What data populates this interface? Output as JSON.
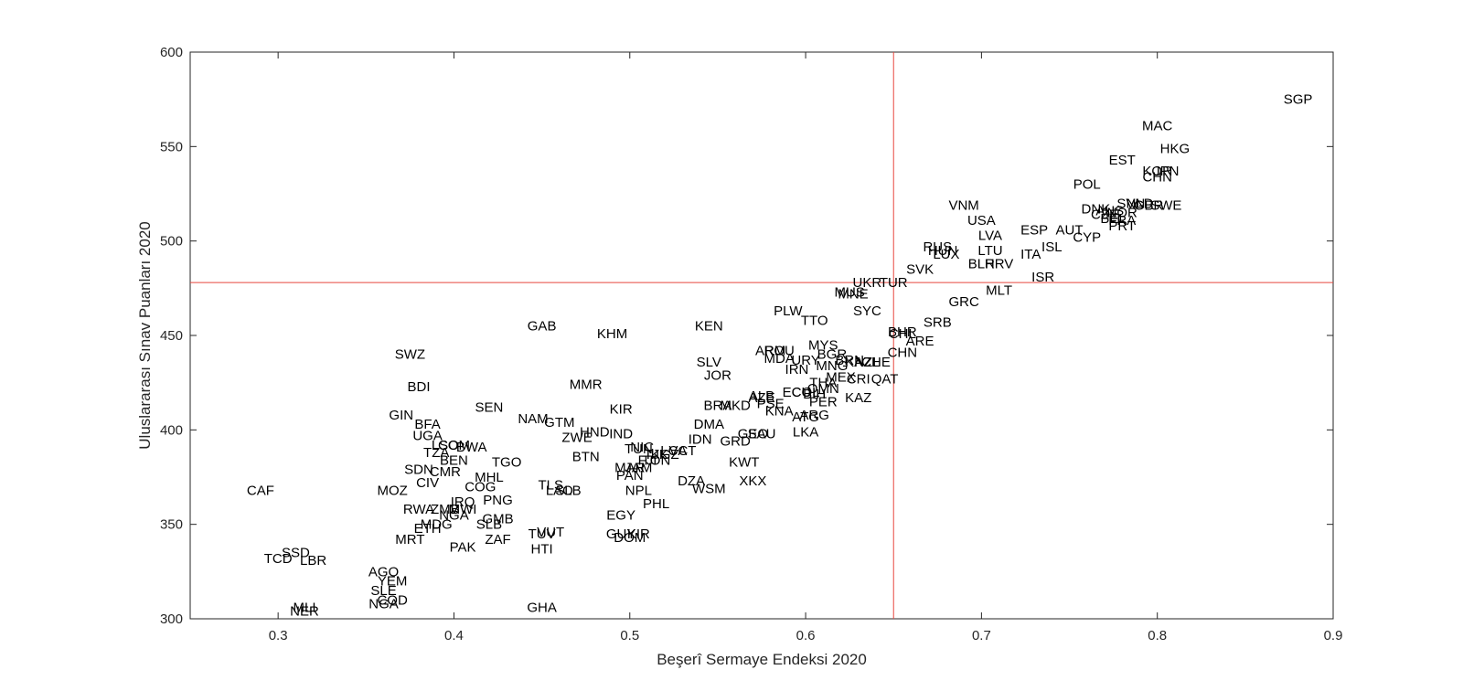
{
  "chart_data": {
    "type": "scatter",
    "title": "",
    "xlabel": "Beşerî Sermaye Endeksi 2020",
    "ylabel": "Uluslararası Sınav Puanları 2020",
    "xlim": [
      0.25,
      0.9
    ],
    "ylim": [
      300,
      600
    ],
    "xticks": [
      "0.3",
      "0.4",
      "0.5",
      "0.6",
      "0.7",
      "0.8",
      "0.9"
    ],
    "yticks": [
      "300",
      "350",
      "400",
      "450",
      "500",
      "550",
      "600"
    ],
    "grid": false,
    "reference_lines": {
      "x": 0.65,
      "y": 478,
      "color": "#e8473f"
    },
    "colors": {
      "axis": "#262626",
      "text": "#000000",
      "reference": "#e8473f"
    },
    "points": [
      {
        "label": "SGP",
        "x": 0.88,
        "y": 575
      },
      {
        "label": "MAC",
        "x": 0.8,
        "y": 561
      },
      {
        "label": "HKG",
        "x": 0.81,
        "y": 549
      },
      {
        "label": "EST",
        "x": 0.78,
        "y": 543
      },
      {
        "label": "KOR",
        "x": 0.8,
        "y": 537
      },
      {
        "label": "JPN",
        "x": 0.805,
        "y": 537
      },
      {
        "label": "CHN",
        "x": 0.8,
        "y": 534
      },
      {
        "label": "POL",
        "x": 0.76,
        "y": 530
      },
      {
        "label": "SVN",
        "x": 0.785,
        "y": 520
      },
      {
        "label": "NLD",
        "x": 0.79,
        "y": 520
      },
      {
        "label": "GBR",
        "x": 0.795,
        "y": 519
      },
      {
        "label": "SWE",
        "x": 0.805,
        "y": 519
      },
      {
        "label": "DNK",
        "x": 0.765,
        "y": 517
      },
      {
        "label": "CZE",
        "x": 0.77,
        "y": 514
      },
      {
        "label": "BEL",
        "x": 0.775,
        "y": 512
      },
      {
        "label": "AUS",
        "x": 0.773,
        "y": 516
      },
      {
        "label": "NOR",
        "x": 0.78,
        "y": 515
      },
      {
        "label": "FRA",
        "x": 0.78,
        "y": 511
      },
      {
        "label": "PRT",
        "x": 0.78,
        "y": 508
      },
      {
        "label": "VNM",
        "x": 0.69,
        "y": 519
      },
      {
        "label": "USA",
        "x": 0.7,
        "y": 511
      },
      {
        "label": "LVA",
        "x": 0.705,
        "y": 503
      },
      {
        "label": "ESP",
        "x": 0.73,
        "y": 506
      },
      {
        "label": "AUT",
        "x": 0.75,
        "y": 506
      },
      {
        "label": "CYP",
        "x": 0.76,
        "y": 502
      },
      {
        "label": "ISL",
        "x": 0.74,
        "y": 497
      },
      {
        "label": "LTU",
        "x": 0.705,
        "y": 495
      },
      {
        "label": "ITA",
        "x": 0.728,
        "y": 493
      },
      {
        "label": "RUS",
        "x": 0.675,
        "y": 497
      },
      {
        "label": "HUN",
        "x": 0.678,
        "y": 495
      },
      {
        "label": "LUX",
        "x": 0.68,
        "y": 493
      },
      {
        "label": "BLR",
        "x": 0.7,
        "y": 488
      },
      {
        "label": "HRV",
        "x": 0.71,
        "y": 488
      },
      {
        "label": "SVK",
        "x": 0.665,
        "y": 485
      },
      {
        "label": "ISR",
        "x": 0.735,
        "y": 481
      },
      {
        "label": "UKR",
        "x": 0.635,
        "y": 478
      },
      {
        "label": "TUR",
        "x": 0.65,
        "y": 478
      },
      {
        "label": "MUS",
        "x": 0.625,
        "y": 473
      },
      {
        "label": "MNE",
        "x": 0.627,
        "y": 472
      },
      {
        "label": "MLT",
        "x": 0.71,
        "y": 474
      },
      {
        "label": "GRC",
        "x": 0.69,
        "y": 468
      },
      {
        "label": "PLW",
        "x": 0.59,
        "y": 463
      },
      {
        "label": "SYC",
        "x": 0.635,
        "y": 463
      },
      {
        "label": "TTO",
        "x": 0.605,
        "y": 458
      },
      {
        "label": "SRB",
        "x": 0.675,
        "y": 457
      },
      {
        "label": "BHR",
        "x": 0.655,
        "y": 452
      },
      {
        "label": "CHL",
        "x": 0.655,
        "y": 451
      },
      {
        "label": "ARE",
        "x": 0.665,
        "y": 447
      },
      {
        "label": "GAB",
        "x": 0.45,
        "y": 455
      },
      {
        "label": "KHM",
        "x": 0.49,
        "y": 451
      },
      {
        "label": "KEN",
        "x": 0.545,
        "y": 455
      },
      {
        "label": "MYS",
        "x": 0.61,
        "y": 445
      },
      {
        "label": "ARM",
        "x": 0.58,
        "y": 442
      },
      {
        "label": "ROU",
        "x": 0.585,
        "y": 442
      },
      {
        "label": "BGR",
        "x": 0.615,
        "y": 440
      },
      {
        "label": "MDA",
        "x": 0.585,
        "y": 438
      },
      {
        "label": "URY",
        "x": 0.6,
        "y": 437
      },
      {
        "label": "BRN",
        "x": 0.625,
        "y": 437
      },
      {
        "label": "KAZ",
        "x": 0.63,
        "y": 436
      },
      {
        "label": "NZL",
        "x": 0.635,
        "y": 436
      },
      {
        "label": "CHE",
        "x": 0.64,
        "y": 436
      },
      {
        "label": "CHN2",
        "x": 0.655,
        "y": 441
      },
      {
        "label": "SLV",
        "x": 0.545,
        "y": 436
      },
      {
        "label": "MNG",
        "x": 0.615,
        "y": 434
      },
      {
        "label": "IRN",
        "x": 0.595,
        "y": 432
      },
      {
        "label": "JOR",
        "x": 0.55,
        "y": 429
      },
      {
        "label": "MEX",
        "x": 0.62,
        "y": 428
      },
      {
        "label": "CRI",
        "x": 0.63,
        "y": 427
      },
      {
        "label": "QAT",
        "x": 0.645,
        "y": 427
      },
      {
        "label": "THA",
        "x": 0.61,
        "y": 425
      },
      {
        "label": "OMN",
        "x": 0.61,
        "y": 422
      },
      {
        "label": "MMR",
        "x": 0.475,
        "y": 424
      },
      {
        "label": "BDI",
        "x": 0.38,
        "y": 423
      },
      {
        "label": "SWZ",
        "x": 0.375,
        "y": 440
      },
      {
        "label": "ECU",
        "x": 0.595,
        "y": 420
      },
      {
        "label": "COL",
        "x": 0.6,
        "y": 420
      },
      {
        "label": "BIH",
        "x": 0.605,
        "y": 419
      },
      {
        "label": "ALB",
        "x": 0.575,
        "y": 418
      },
      {
        "label": "AZE",
        "x": 0.575,
        "y": 417
      },
      {
        "label": "PSE",
        "x": 0.58,
        "y": 414
      },
      {
        "label": "PER",
        "x": 0.61,
        "y": 415
      },
      {
        "label": "KAZ2",
        "x": 0.63,
        "y": 417
      },
      {
        "label": "BRA",
        "x": 0.55,
        "y": 413
      },
      {
        "label": "MKD",
        "x": 0.56,
        "y": 413
      },
      {
        "label": "KNA",
        "x": 0.585,
        "y": 410
      },
      {
        "label": "ATG",
        "x": 0.6,
        "y": 407
      },
      {
        "label": "ARG",
        "x": 0.605,
        "y": 408
      },
      {
        "label": "KIR",
        "x": 0.495,
        "y": 411
      },
      {
        "label": "SEN",
        "x": 0.42,
        "y": 412
      },
      {
        "label": "GIN",
        "x": 0.37,
        "y": 408
      },
      {
        "label": "NAM",
        "x": 0.445,
        "y": 406
      },
      {
        "label": "GTM",
        "x": 0.46,
        "y": 404
      },
      {
        "label": "DMA",
        "x": 0.545,
        "y": 403
      },
      {
        "label": "BFA",
        "x": 0.385,
        "y": 403
      },
      {
        "label": "LKA",
        "x": 0.6,
        "y": 399
      },
      {
        "label": "HND",
        "x": 0.48,
        "y": 399
      },
      {
        "label": "IND",
        "x": 0.495,
        "y": 398
      },
      {
        "label": "GEO",
        "x": 0.57,
        "y": 398
      },
      {
        "label": "SAU",
        "x": 0.575,
        "y": 398
      },
      {
        "label": "UGA",
        "x": 0.385,
        "y": 397
      },
      {
        "label": "ZWE",
        "x": 0.47,
        "y": 396
      },
      {
        "label": "IDN",
        "x": 0.54,
        "y": 395
      },
      {
        "label": "GRD",
        "x": 0.56,
        "y": 394
      },
      {
        "label": "LSO",
        "x": 0.395,
        "y": 392
      },
      {
        "label": "COM",
        "x": 0.4,
        "y": 392
      },
      {
        "label": "BWA",
        "x": 0.41,
        "y": 391
      },
      {
        "label": "TUN",
        "x": 0.505,
        "y": 390
      },
      {
        "label": "NIC",
        "x": 0.507,
        "y": 391
      },
      {
        "label": "LCA",
        "x": 0.525,
        "y": 389
      },
      {
        "label": "VCT",
        "x": 0.53,
        "y": 389
      },
      {
        "label": "TZA",
        "x": 0.39,
        "y": 388
      },
      {
        "label": "TJK",
        "x": 0.515,
        "y": 387
      },
      {
        "label": "KGZ",
        "x": 0.52,
        "y": 387
      },
      {
        "label": "BTN",
        "x": 0.475,
        "y": 386
      },
      {
        "label": "FJI",
        "x": 0.51,
        "y": 384
      },
      {
        "label": "TON",
        "x": 0.515,
        "y": 384
      },
      {
        "label": "KWT",
        "x": 0.565,
        "y": 383
      },
      {
        "label": "BEN",
        "x": 0.4,
        "y": 384
      },
      {
        "label": "TGO",
        "x": 0.43,
        "y": 383
      },
      {
        "label": "MAR",
        "x": 0.5,
        "y": 380
      },
      {
        "label": "JAM",
        "x": 0.505,
        "y": 380
      },
      {
        "label": "SDN",
        "x": 0.38,
        "y": 379
      },
      {
        "label": "CMR",
        "x": 0.395,
        "y": 378
      },
      {
        "label": "PAN",
        "x": 0.5,
        "y": 376
      },
      {
        "label": "MHL",
        "x": 0.42,
        "y": 375
      },
      {
        "label": "DZA",
        "x": 0.535,
        "y": 373
      },
      {
        "label": "XKX",
        "x": 0.57,
        "y": 373
      },
      {
        "label": "CIV",
        "x": 0.385,
        "y": 372
      },
      {
        "label": "COG",
        "x": 0.415,
        "y": 370
      },
      {
        "label": "TLS",
        "x": 0.455,
        "y": 371
      },
      {
        "label": "WSM",
        "x": 0.545,
        "y": 369
      },
      {
        "label": "MOZ",
        "x": 0.365,
        "y": 368
      },
      {
        "label": "LAO",
        "x": 0.46,
        "y": 368
      },
      {
        "label": "SLB2",
        "x": 0.465,
        "y": 368
      },
      {
        "label": "NPL",
        "x": 0.505,
        "y": 368
      },
      {
        "label": "CAF",
        "x": 0.29,
        "y": 368
      },
      {
        "label": "PNG",
        "x": 0.425,
        "y": 363
      },
      {
        "label": "IRQ",
        "x": 0.405,
        "y": 362
      },
      {
        "label": "PHL",
        "x": 0.515,
        "y": 361
      },
      {
        "label": "MWI",
        "x": 0.405,
        "y": 358
      },
      {
        "label": "ZMB",
        "x": 0.395,
        "y": 358
      },
      {
        "label": "RWA",
        "x": 0.38,
        "y": 358
      },
      {
        "label": "EGY",
        "x": 0.495,
        "y": 355
      },
      {
        "label": "NGA2",
        "x": 0.4,
        "y": 355
      },
      {
        "label": "GMB",
        "x": 0.425,
        "y": 353
      },
      {
        "label": "MDG",
        "x": 0.39,
        "y": 350
      },
      {
        "label": "SLB",
        "x": 0.42,
        "y": 350
      },
      {
        "label": "ETH",
        "x": 0.385,
        "y": 348
      },
      {
        "label": "VUT",
        "x": 0.455,
        "y": 346
      },
      {
        "label": "TUV",
        "x": 0.45,
        "y": 345
      },
      {
        "label": "GUY",
        "x": 0.495,
        "y": 345
      },
      {
        "label": "KIR2",
        "x": 0.505,
        "y": 345
      },
      {
        "label": "DOM",
        "x": 0.5,
        "y": 343
      },
      {
        "label": "MRT",
        "x": 0.375,
        "y": 342
      },
      {
        "label": "ZAF",
        "x": 0.425,
        "y": 342
      },
      {
        "label": "PAK",
        "x": 0.405,
        "y": 338
      },
      {
        "label": "HTI",
        "x": 0.45,
        "y": 337
      },
      {
        "label": "SSD",
        "x": 0.31,
        "y": 335
      },
      {
        "label": "TCD",
        "x": 0.3,
        "y": 332
      },
      {
        "label": "LBR",
        "x": 0.32,
        "y": 331
      },
      {
        "label": "AGO",
        "x": 0.36,
        "y": 325
      },
      {
        "label": "YEM",
        "x": 0.365,
        "y": 320
      },
      {
        "label": "SLE",
        "x": 0.36,
        "y": 315
      },
      {
        "label": "COD",
        "x": 0.365,
        "y": 310
      },
      {
        "label": "NGA",
        "x": 0.36,
        "y": 308
      },
      {
        "label": "MLI",
        "x": 0.315,
        "y": 306
      },
      {
        "label": "NER",
        "x": 0.315,
        "y": 304
      },
      {
        "label": "GHA",
        "x": 0.45,
        "y": 306
      }
    ]
  }
}
